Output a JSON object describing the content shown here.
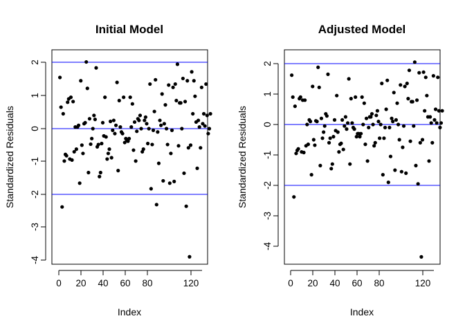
{
  "chart_data": [
    {
      "type": "scatter",
      "title": "Initial Model",
      "xlabel": "Index",
      "ylabel": "Standardized Residuals",
      "xlim": [
        0,
        130
      ],
      "ylim": [
        -4,
        2
      ],
      "x_ticks": [
        "0",
        "20",
        "40",
        "60",
        "80",
        "120"
      ],
      "x_tick_values": [
        0,
        20,
        40,
        60,
        80,
        120
      ],
      "y_ticks": [
        "-4",
        "-3",
        "-2",
        "-1",
        "0",
        "1",
        "2"
      ],
      "y_tick_values": [
        -4,
        -3,
        -2,
        -1,
        0,
        1,
        2
      ],
      "reference_lines": [
        2,
        0,
        -2
      ],
      "reference_line_color": "#0000ff",
      "point_color": "#000000",
      "grid": false,
      "y": [
        1.55,
        0.65,
        -2.37,
        0.45,
        -0.98,
        -0.78,
        -0.82,
        0.8,
        0.9,
        -0.92,
        0.95,
        -0.95,
        0.82,
        -0.7,
        0.05,
        -0.62,
        0.05,
        0.1,
        -1.65,
        1.45,
        -0.5,
        -0.75,
        0.15,
        0.18,
        2.02,
        1.22,
        -1.33,
        0.3,
        -0.47,
        -0.3,
        0.0,
        0.4,
        0.28,
        1.84,
        -0.55,
        -0.48,
        -1.45,
        -1.33,
        -0.45,
        0.18,
        -0.22,
        0.95,
        -0.25,
        -0.92,
        -0.75,
        -0.62,
        0.22,
        -0.88,
        -0.05,
        0.25,
        -0.15,
        0.1,
        1.4,
        -1.27,
        0.85,
        0.05,
        -0.1,
        -0.15,
        0.95,
        -0.42,
        -0.3,
        -0.35,
        -0.38,
        -0.3,
        0.95,
        0.05,
        0.75,
        -0.65,
        0.2,
        -0.98,
        -0.08,
        0.3,
        0.25,
        0.4,
        0.0,
        -0.7,
        -0.62,
        0.25,
        0.35,
        0.15,
        -0.45,
        0.0,
        1.35,
        -1.82,
        -0.48,
        -0.05,
        0.52,
        1.48,
        -2.3,
        -0.1,
        -1.05,
        0.25,
        0.1,
        1.05,
        -1.58,
        0.15,
        0.72,
        0.0,
        -0.48,
        1.32,
        -1.65,
        -0.75,
        -0.05,
        1.25,
        -1.6,
        1.35,
        0.85,
        1.95,
        -0.52,
        0.78,
        0.78,
        0.0,
        1.52,
        -1.35,
        0.82,
        -2.35,
        1.45,
        -0.58,
        -3.88,
        -0.5,
        1.72,
        0.45,
        1.45,
        0.98,
        0.2,
        -1.2,
        0.25,
        0.05,
        -0.58,
        1.25,
        0.15,
        0.45,
        0.08,
        1.35,
        0.4,
        -0.15,
        0.0,
        0.45
      ]
    },
    {
      "type": "scatter",
      "title": "Adjusted Model",
      "xlabel": "Index",
      "ylabel": "Standardized Residuals",
      "xlim": [
        0,
        130
      ],
      "ylim": [
        -4.5,
        2
      ],
      "x_ticks": [
        "0",
        "20",
        "40",
        "60",
        "80",
        "120"
      ],
      "x_tick_values": [
        0,
        20,
        40,
        60,
        80,
        120
      ],
      "y_ticks": [
        "-4",
        "-3",
        "-2",
        "-1",
        "0",
        "1",
        "2"
      ],
      "y_tick_values": [
        -4,
        -3,
        -2,
        -1,
        0,
        1,
        2
      ],
      "reference_lines": [
        2,
        0,
        -2
      ],
      "reference_line_color": "#0000ff",
      "point_color": "#000000",
      "grid": false,
      "y": [
        1.62,
        0.9,
        -2.38,
        0.6,
        -0.95,
        -0.85,
        -0.8,
        0.85,
        0.9,
        -0.9,
        0.8,
        -0.92,
        0.8,
        -0.7,
        0.0,
        -0.65,
        0.15,
        0.1,
        -1.65,
        1.25,
        -0.5,
        -0.68,
        0.12,
        0.1,
        1.88,
        1.22,
        -1.35,
        0.2,
        -0.45,
        -0.25,
        -0.05,
        0.35,
        0.28,
        1.65,
        -0.6,
        -0.45,
        -1.45,
        -1.3,
        -0.4,
        0.15,
        -0.2,
        0.95,
        -0.25,
        -0.9,
        -0.65,
        -0.62,
        0.15,
        -0.82,
        -0.05,
        0.25,
        -0.15,
        0.05,
        1.5,
        -1.3,
        0.85,
        0.05,
        -0.1,
        -0.15,
        0.9,
        -0.4,
        -0.3,
        -0.3,
        -0.4,
        -0.3,
        0.9,
        0.0,
        0.7,
        -0.65,
        0.2,
        -1.2,
        -0.1,
        0.25,
        0.25,
        0.35,
        0.0,
        -0.7,
        -0.6,
        0.3,
        0.45,
        0.1,
        -0.45,
        0.0,
        1.35,
        -1.65,
        -0.45,
        -0.1,
        0.5,
        1.45,
        -1.9,
        -0.1,
        -1.05,
        0.2,
        0.1,
        1.05,
        -1.5,
        0.15,
        0.7,
        0.0,
        -0.5,
        1.3,
        -1.55,
        -0.75,
        -0.05,
        1.25,
        -1.6,
        1.35,
        0.85,
        1.78,
        -0.55,
        0.75,
        0.75,
        -0.05,
        2.05,
        -1.35,
        0.8,
        -1.95,
        1.7,
        -0.6,
        -4.35,
        -0.5,
        1.72,
        0.45,
        1.55,
        0.95,
        0.25,
        -1.2,
        0.25,
        0.05,
        -0.6,
        1.6,
        0.15,
        0.5,
        0.05,
        1.55,
        0.45,
        -0.1,
        0.05,
        0.45
      ]
    }
  ]
}
